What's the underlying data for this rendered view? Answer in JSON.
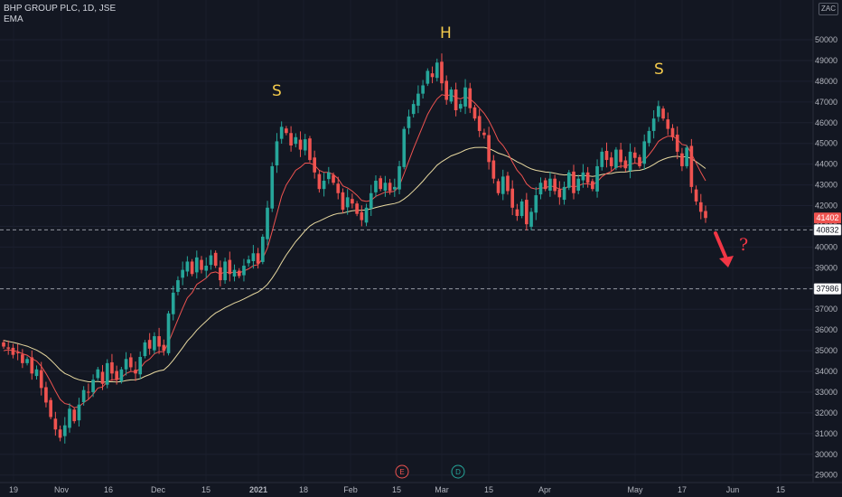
{
  "header": {
    "symbol_line": "BHP GROUP PLC, 1D, JSE",
    "indicator": "EMA",
    "currency": "ZAC"
  },
  "colors": {
    "background": "#131722",
    "up": "#26a69a",
    "down": "#ef5350",
    "ema_fast": "#ef5350",
    "ema_slow": "#e8d9a0",
    "annotation_text": "#f2c94c",
    "arrow": "#f23645"
  },
  "chart_data": {
    "type": "candlestick",
    "y_range": [
      28500,
      51000
    ],
    "y_ticks": [
      29000,
      30000,
      31000,
      32000,
      33000,
      34000,
      35000,
      36000,
      37000,
      38000,
      39000,
      40000,
      41000,
      42000,
      43000,
      44000,
      45000,
      46000,
      47000,
      48000,
      49000,
      50000
    ],
    "x_ticks": [
      "19",
      "Nov",
      "16",
      "Dec",
      "15",
      "2021",
      "18",
      "Feb",
      "15",
      "Mar",
      "15",
      "Apr",
      "May",
      "17",
      "Jun",
      "15"
    ],
    "price_labels": [
      {
        "value": 41402,
        "text": "41402",
        "kind": "last"
      },
      {
        "value": 40832,
        "text": "40832",
        "kind": "line"
      },
      {
        "value": 37986,
        "text": "37986",
        "kind": "line"
      }
    ],
    "horizontal_lines": [
      40832,
      37986
    ],
    "annotations": [
      {
        "text": "S",
        "label": "left-shoulder"
      },
      {
        "text": "H",
        "label": "head"
      },
      {
        "text": "S",
        "label": "right-shoulder"
      },
      {
        "text": "?",
        "label": "question-mark"
      }
    ],
    "event_markers": [
      "E",
      "D"
    ],
    "closes": [
      35200,
      35100,
      34800,
      34900,
      34400,
      34600,
      33900,
      34100,
      33200,
      32500,
      31800,
      31200,
      30800,
      31400,
      32200,
      31600,
      32400,
      33100,
      33000,
      33600,
      34100,
      33400,
      34400,
      33900,
      33600,
      34100,
      34600,
      34200,
      33900,
      34700,
      35400,
      35100,
      35700,
      35200,
      35000,
      36800,
      37800,
      38400,
      38900,
      39300,
      38700,
      39500,
      38900,
      39100,
      39600,
      39100,
      38400,
      39300,
      38700,
      38900,
      38600,
      39100,
      39400,
      39700,
      39200,
      40500,
      41900,
      43900,
      45100,
      45800,
      45500,
      44900,
      45300,
      44700,
      45200,
      44200,
      43600,
      42800,
      43200,
      43600,
      43100,
      42600,
      41800,
      42400,
      42100,
      41600,
      41300,
      41900,
      42600,
      43200,
      42800,
      43100,
      42700,
      42900,
      43900,
      45700,
      46300,
      46900,
      47400,
      47800,
      48500,
      48200,
      48900,
      47900,
      47100,
      47600,
      46600,
      46900,
      47700,
      46700,
      46200,
      45600,
      45400,
      44100,
      43300,
      42600,
      43400,
      42700,
      41900,
      41500,
      42200,
      41100,
      41700,
      42500,
      43100,
      42800,
      43300,
      42700,
      42400,
      42900,
      43600,
      42600,
      43300,
      43600,
      43100,
      42800,
      43900,
      44600,
      44200,
      43900,
      44700,
      44100,
      43800,
      44600,
      44300,
      43900,
      45100,
      45600,
      46200,
      46800,
      46200,
      45700,
      45300,
      44600,
      43900,
      44800,
      42900,
      42200,
      41700,
      41402
    ],
    "ema_fast": [
      35000,
      35050,
      35000,
      34960,
      34850,
      34780,
      34620,
      34500,
      34250,
      33900,
      33500,
      33050,
      32650,
      32450,
      32400,
      32250,
      32300,
      32500,
      32650,
      32900,
      33200,
      33250,
      33500,
      33600,
      33600,
      33700,
      33900,
      34000,
      33980,
      34150,
      34450,
      34600,
      34850,
      34950,
      34950,
      35400,
      35950,
      36500,
      37050,
      37550,
      37800,
      38200,
      38350,
      38500,
      38750,
      38800,
      38700,
      38800,
      38750,
      38800,
      38750,
      38850,
      38950,
      39100,
      39150,
      39450,
      39950,
      40750,
      41600,
      42450,
      43000,
      43350,
      43700,
      43850,
      44050,
      44050,
      43950,
      43700,
      43600,
      43600,
      43500,
      43300,
      42950,
      42850,
      42700,
      42500,
      42250,
      42200,
      42250,
      42450,
      42550,
      42650,
      42650,
      42700,
      42950,
      43550,
      44150,
      44750,
      45300,
      45850,
      46400,
      46800,
      47150,
      47350,
      47300,
      47350,
      47200,
      47150,
      47250,
      47150,
      46950,
      46700,
      46450,
      46100,
      45650,
      45150,
      44900,
      44550,
      44100,
      43700,
      43450,
      43050,
      42850,
      42800,
      42850,
      42850,
      42950,
      42900,
      42800,
      42800,
      42950,
      42900,
      42950,
      43050,
      43050,
      43000,
      43150,
      43400,
      43550,
      43650,
      43850,
      43900,
      43900,
      44000,
      44050,
      44000,
      44200,
      44450,
      44750,
      45100,
      45250,
      45350,
      45350,
      45200,
      44950,
      44900,
      44500,
      44050,
      43600,
      43200
    ],
    "ema_slow": [
      35500,
      35450,
      35400,
      35350,
      35280,
      35220,
      35120,
      35030,
      34900,
      34750,
      34550,
      34320,
      34080,
      33900,
      33800,
      33680,
      33600,
      33550,
      33500,
      33500,
      33520,
      33480,
      33500,
      33500,
      33490,
      33510,
      33560,
      33590,
      33600,
      33650,
      33760,
      33850,
      33960,
      34030,
      34070,
      34270,
      34540,
      34840,
      35150,
      35470,
      35710,
      35990,
      36210,
      36420,
      36640,
      36820,
      36940,
      37080,
      37190,
      37300,
      37390,
      37500,
      37610,
      37730,
      37830,
      37990,
      38200,
      38500,
      38850,
      39250,
      39620,
      39940,
      40260,
      40520,
      40790,
      41010,
      41160,
      41250,
      41360,
      41470,
      41560,
      41620,
      41640,
      41700,
      41750,
      41770,
      41770,
      41790,
      41840,
      41910,
      41960,
      42020,
      42060,
      42100,
      42170,
      42320,
      42500,
      42710,
      42940,
      43180,
      43450,
      43690,
      43950,
      44120,
      44260,
      44400,
      44480,
      44570,
      44680,
      44760,
      44800,
      44810,
      44810,
      44750,
      44650,
      44530,
      44460,
      44370,
      44250,
      44110,
      44010,
      43880,
      43770,
      43700,
      43660,
      43620,
      43600,
      43560,
      43510,
      43480,
      43490,
      43450,
      43440,
      43450,
      43440,
      43410,
      43440,
      43500,
      43530,
      43550,
      43600,
      43620,
      43620,
      43660,
      43690,
      43700,
      43760,
      43860,
      43980,
      44130,
      44230,
      44310,
      44360,
      44380,
      44340,
      44360,
      44260,
      44120,
      43960,
      43790
    ]
  }
}
